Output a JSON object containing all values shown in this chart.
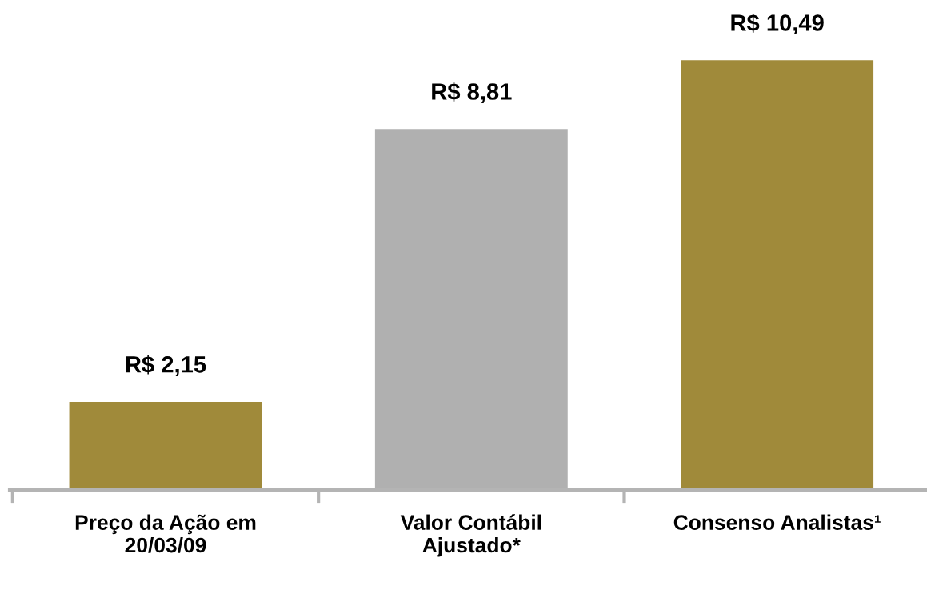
{
  "chart_data": {
    "type": "bar",
    "categories": [
      "Preço da Ação em\n20/03/09",
      "Valor Contábil\nAjustado*",
      "Consenso Analistas¹"
    ],
    "values": [
      2.15,
      8.81,
      10.49
    ],
    "colors": [
      "#a08a3a",
      "#b0b0b0",
      "#a08a3a"
    ],
    "value_labels": [
      "R$ 2,15",
      "R$ 8,81",
      "R$ 10,49"
    ],
    "grid": false,
    "legend": false
  }
}
